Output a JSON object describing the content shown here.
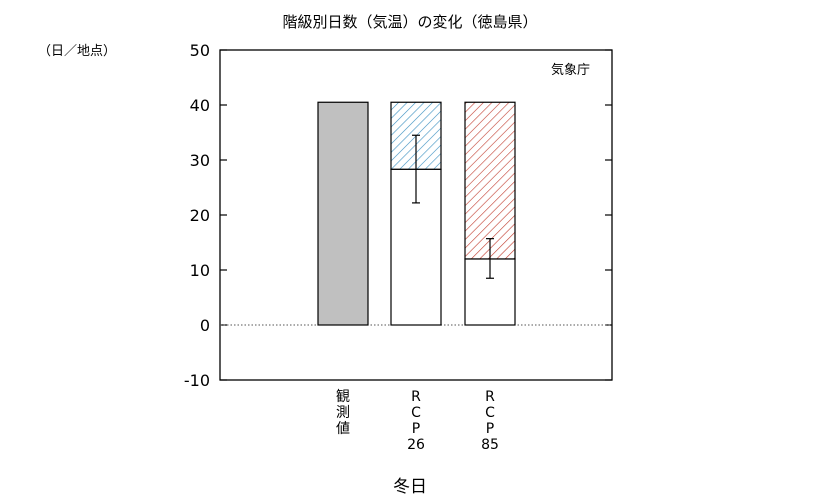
{
  "chart_data": {
    "type": "bar",
    "title": "階級別日数（気温）の変化（徳島県）",
    "unit_label": "（日／地点）",
    "source": "気象庁",
    "xlabel": "冬日",
    "ylim": [
      -10,
      50
    ],
    "yticks": [
      -10,
      0,
      10,
      20,
      30,
      40,
      50
    ],
    "zero_line": "dotted",
    "categories": [
      {
        "label": [
          "観",
          "測",
          "値"
        ]
      },
      {
        "label": [
          "R",
          "C",
          "P",
          "26"
        ]
      },
      {
        "label": [
          "R",
          "C",
          "P",
          "85"
        ]
      }
    ],
    "bars": [
      {
        "category": 0,
        "observed": 40.5
      },
      {
        "category": 1,
        "base": 40.5,
        "future": 28.3,
        "change_fill": "hatched-blue",
        "error": [
          22.2,
          34.5
        ]
      },
      {
        "category": 2,
        "base": 40.5,
        "future": 12.0,
        "change_fill": "hatched-red",
        "error": [
          8.5,
          15.7
        ]
      }
    ],
    "colors": {
      "observed": "#c0c0c0",
      "blue_hatch": "#3a8fc0",
      "red_hatch": "#c0392b"
    }
  }
}
